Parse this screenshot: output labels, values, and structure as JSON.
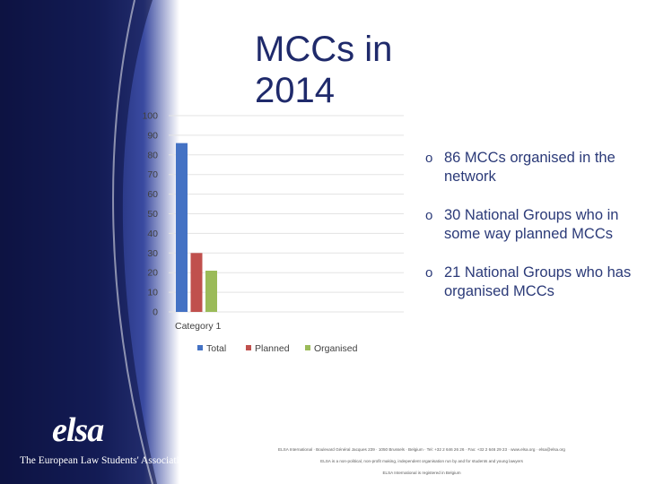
{
  "slide": {
    "title": "MCCs in 2014",
    "bullets": [
      {
        "marker": "o",
        "text": "86 MCCs organised in the network"
      },
      {
        "marker": "o",
        "text": "30 National Groups who in some way planned MCCs"
      },
      {
        "marker": "o",
        "text": "21 National Groups who has organised MCCs"
      }
    ],
    "logo": {
      "word": "elsa",
      "subtitle": "The European Law Students' Association"
    },
    "footer_lines": [
      "ELSA International · Boulevard Général Jacques 239 · 1050 Brussels · Belgium · Tel: +32 2 646 26 26 · Fax: +32 2 646 29 23 · www.elsa.org · elsa@elsa.org",
      "ELSA is a non-political, non-profit making, independent organisation run by and for students and young lawyers",
      "ELSA International is registered in Belgium"
    ]
  },
  "chart_data": {
    "type": "bar",
    "title": "",
    "xlabel": "",
    "ylabel": "",
    "categories": [
      "Category 1"
    ],
    "series": [
      {
        "name": "Total",
        "values": [
          86
        ],
        "color": "#4472c4"
      },
      {
        "name": "Planned",
        "values": [
          30
        ],
        "color": "#c0504d"
      },
      {
        "name": "Organised",
        "values": [
          21
        ],
        "color": "#9bbb59"
      }
    ],
    "ylim": [
      0,
      100
    ],
    "yticks": [
      0,
      10,
      20,
      30,
      40,
      50,
      60,
      70,
      80,
      90,
      100
    ],
    "grid": true,
    "legend_position": "bottom"
  }
}
